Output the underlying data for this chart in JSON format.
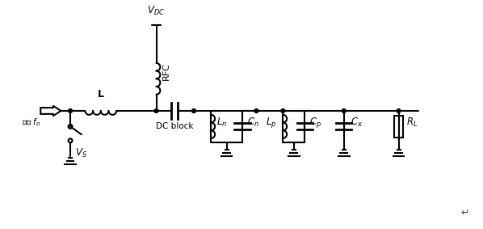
{
  "bg_color": "#ffffff",
  "line_color": "#000000",
  "line_width": 1.5,
  "labels": {
    "VDC": "$V_{DC}$",
    "RFC": "RFC",
    "L": "L",
    "DC_block": "DC block",
    "Cn": "$C_n$",
    "Ln": "$L_n$",
    "Lp": "$L_p$",
    "Cp": "$C_p$",
    "Cx": "$C_x$",
    "RL": "$R_L$",
    "Vs": "$V_S$",
    "drive": "驱动 $f_o$"
  },
  "figsize": [
    5.98,
    2.83
  ],
  "dpi": 100
}
